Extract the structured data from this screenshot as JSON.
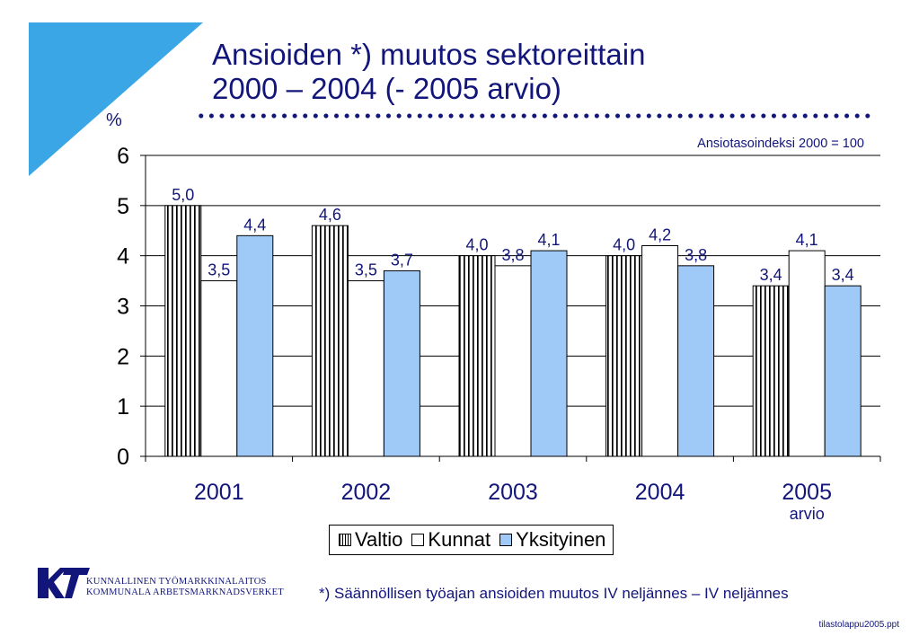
{
  "slide": {
    "title_line1": "Ansioiden *) muutos sektoreittain",
    "title_line2": "2000 – 2004 (- 2005 arvio)",
    "footnote": "*) Säännöllisen työajan ansioiden muutos IV neljännes – IV neljännes",
    "filename": "tilastolappu2005.ppt",
    "org_line1": "KUNNALLINEN TYÖMARKKINALAITOS",
    "org_line2": "KOMMUNALA ARBETSMARKNADSVERKET"
  },
  "colors": {
    "accent_blue": "#12157a",
    "corner_triangle": "#3aa6e6",
    "yksityinen_fill": "#9fcaf7",
    "kunnat_fill": "#ffffff",
    "valtio_pattern": "vertical black stripes"
  },
  "icons": {
    "logo": "kt-logo"
  },
  "chart_data": {
    "type": "bar",
    "ylabel": "%",
    "annotation": "Ansiotasoindeksi 2000 = 100",
    "categories": [
      "2001",
      "2002",
      "2003",
      "2004",
      "2005"
    ],
    "category_sublabels": [
      "",
      "",
      "",
      "",
      "arvio"
    ],
    "ylim": [
      0,
      6
    ],
    "yticks": [
      0,
      1,
      2,
      3,
      4,
      5,
      6
    ],
    "grid": true,
    "legend_position": "bottom",
    "series": [
      {
        "name": "Valtio",
        "values": [
          5.0,
          4.6,
          4.0,
          4.0,
          3.4
        ],
        "labels": [
          "5,0",
          "4,6",
          "4,0",
          "4,0",
          "3,4"
        ]
      },
      {
        "name": "Kunnat",
        "values": [
          3.5,
          3.5,
          3.8,
          4.2,
          4.1
        ],
        "labels": [
          "3,5",
          "3,5",
          "3,8",
          "4,2",
          "4,1"
        ]
      },
      {
        "name": "Yksityinen",
        "values": [
          4.4,
          3.7,
          4.1,
          3.8,
          3.4
        ],
        "labels": [
          "4,4",
          "3,7",
          "4,1",
          "3,8",
          "3,4"
        ]
      }
    ]
  }
}
